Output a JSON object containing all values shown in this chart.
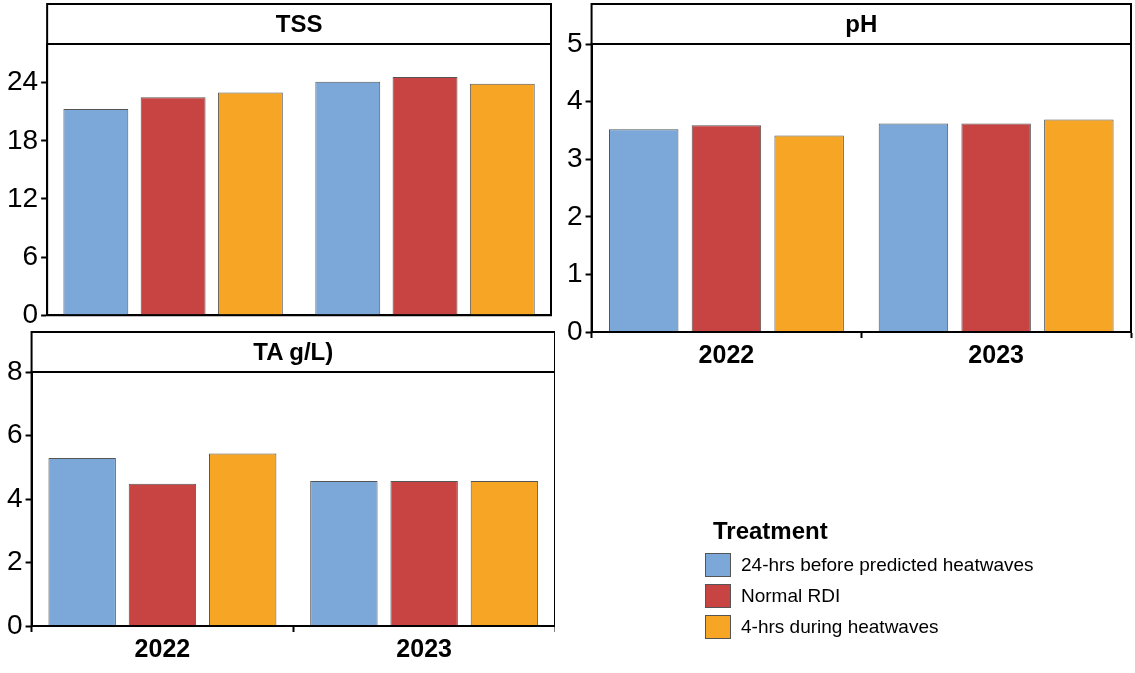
{
  "chart_data": [
    {
      "type": "bar",
      "title": "TSS",
      "categories": [
        "2022",
        "2023"
      ],
      "ylim": [
        0,
        28
      ],
      "yticks": [
        0,
        6,
        12,
        18,
        24
      ],
      "grid": false,
      "legend": false,
      "tick_labels": "y",
      "series": [
        {
          "color": "#7ba7d9",
          "values": [
            21.3,
            24.1
          ]
        },
        {
          "color": "#c84443",
          "values": [
            22.5,
            24.6
          ]
        },
        {
          "color": "#f6a524",
          "values": [
            23.0,
            23.9
          ]
        }
      ]
    },
    {
      "type": "bar",
      "title": "pH",
      "categories": [
        "2022",
        "2023"
      ],
      "ylim": [
        0,
        5
      ],
      "yticks": [
        0,
        1,
        2,
        3,
        4,
        5
      ],
      "grid": false,
      "legend": false,
      "series": [
        {
          "color": "#7ba7d9",
          "values": [
            3.52,
            3.62
          ]
        },
        {
          "color": "#c84443",
          "values": [
            3.59,
            3.62
          ]
        },
        {
          "color": "#f6a524",
          "values": [
            3.41,
            3.69
          ]
        }
      ]
    },
    {
      "type": "bar",
      "title": "TA g/L)",
      "categories": [
        "2022",
        "2023"
      ],
      "ylim": [
        0,
        8
      ],
      "yticks": [
        0,
        2,
        4,
        6,
        8
      ],
      "grid": false,
      "legend": "bottom right",
      "legend_title": "Treatment",
      "series": [
        {
          "name": "24-hrs before predicted heatwaves",
          "color": "#7ba7d9",
          "values": [
            5.29,
            4.57
          ]
        },
        {
          "name": "Normal RDI",
          "color": "#c84443",
          "values": [
            4.48,
            4.57
          ]
        },
        {
          "name": "4-hrs during heatwaves",
          "color": "#f6a524",
          "values": [
            5.43,
            4.57
          ]
        }
      ]
    }
  ]
}
